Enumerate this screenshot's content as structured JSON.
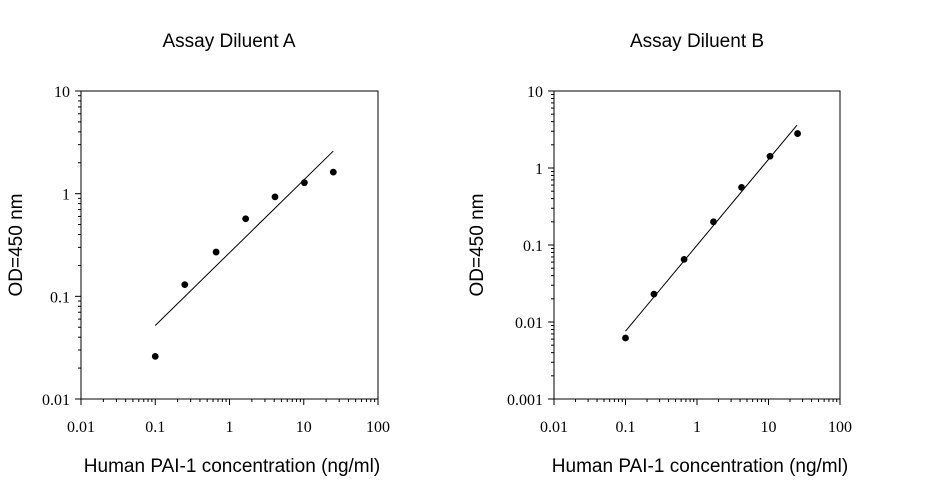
{
  "chart_data": [
    {
      "type": "scatter",
      "title": "Assay Diluent A",
      "xlabel": "Human PAI-1 concentration (ng/ml)",
      "ylabel": "OD=450 nm",
      "xscale": "log",
      "yscale": "log",
      "xlim": [
        0.01,
        100
      ],
      "ylim": [
        0.01,
        10
      ],
      "xticks": [
        "0.01",
        "0.1",
        "1",
        "10",
        "100"
      ],
      "yticks": [
        "0.01",
        "0.1",
        "1",
        "10"
      ],
      "grid": false,
      "series": [
        {
          "x": [
            0.1,
            0.25,
            0.66,
            1.65,
            4.1,
            10.2,
            25
          ],
          "y": [
            0.026,
            0.13,
            0.27,
            0.57,
            0.93,
            1.28,
            1.62
          ],
          "style": "markers"
        },
        {
          "x": [
            0.1,
            25
          ],
          "y": [
            0.052,
            2.6
          ],
          "style": "line"
        }
      ]
    },
    {
      "type": "scatter",
      "title": "Assay Diluent B",
      "xlabel": "Human PAI-1 concentration (ng/ml)",
      "ylabel": "OD=450 nm",
      "xscale": "log",
      "yscale": "log",
      "xlim": [
        0.01,
        100
      ],
      "ylim": [
        0.001,
        10
      ],
      "xticks": [
        "0.01",
        "0.1",
        "1",
        "10",
        "100"
      ],
      "yticks": [
        "0.001",
        "0.01",
        "0.1",
        "1",
        "10"
      ],
      "grid": false,
      "series": [
        {
          "x": [
            0.1,
            0.25,
            0.66,
            1.7,
            4.2,
            10.5,
            25.5
          ],
          "y": [
            0.0062,
            0.023,
            0.065,
            0.2,
            0.56,
            1.42,
            2.8
          ],
          "style": "markers"
        },
        {
          "x": [
            0.1,
            25
          ],
          "y": [
            0.0076,
            3.6
          ],
          "style": "line"
        }
      ]
    }
  ]
}
